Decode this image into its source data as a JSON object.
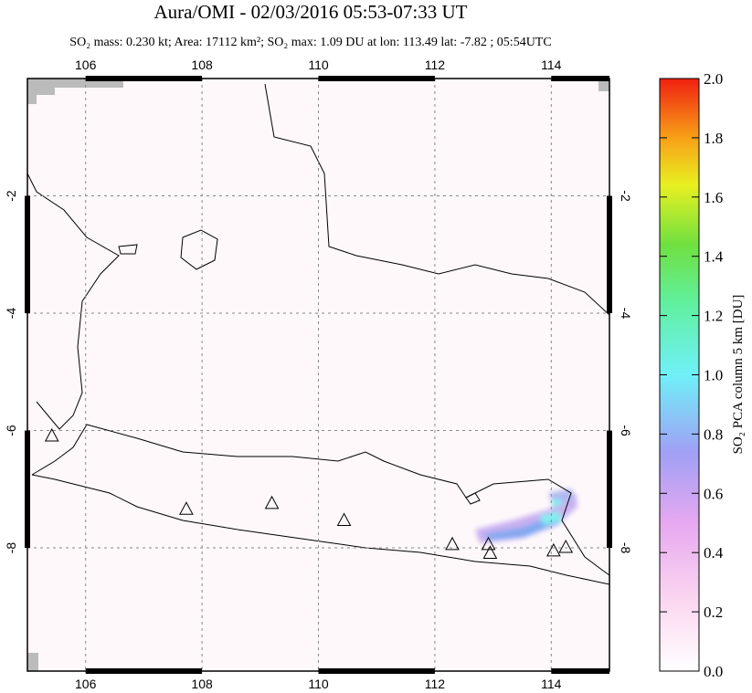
{
  "title": "Aura/OMI - 02/03/2016 05:53-07:33 UT",
  "subtitle": "SO₂ mass: 0.230 kt; Area: 17112 km²; SO₂ max: 1.09 DU at lon: 113.49 lat: -7.82 ; 05:54UTC",
  "map": {
    "xlim": [
      105,
      115
    ],
    "ylim": [
      -10.1,
      0
    ],
    "xticks": [
      106,
      108,
      110,
      112,
      114
    ],
    "yticks": [
      -2,
      -4,
      -6,
      -8
    ],
    "grid": true,
    "volcanoes": {
      "lon": [
        105.42,
        107.73,
        109.2,
        110.44,
        112.3,
        112.92,
        112.95,
        114.04,
        114.25
      ],
      "lat": [
        -6.1,
        -7.35,
        -7.25,
        -7.54,
        -7.95,
        -7.95,
        -8.1,
        -8.06,
        -8.0
      ]
    }
  },
  "colorbar": {
    "label": "SO₂ PCA column 5 km [DU]",
    "lim": [
      0,
      2
    ],
    "ticks": [
      {
        "value": 0,
        "label": "0.0"
      },
      0.2,
      0.4,
      0.6,
      0.8,
      {
        "value": 1,
        "label": "1.0"
      },
      1.2,
      1.4,
      1.6,
      1.8,
      {
        "value": 2,
        "label": "2.0"
      }
    ]
  }
}
